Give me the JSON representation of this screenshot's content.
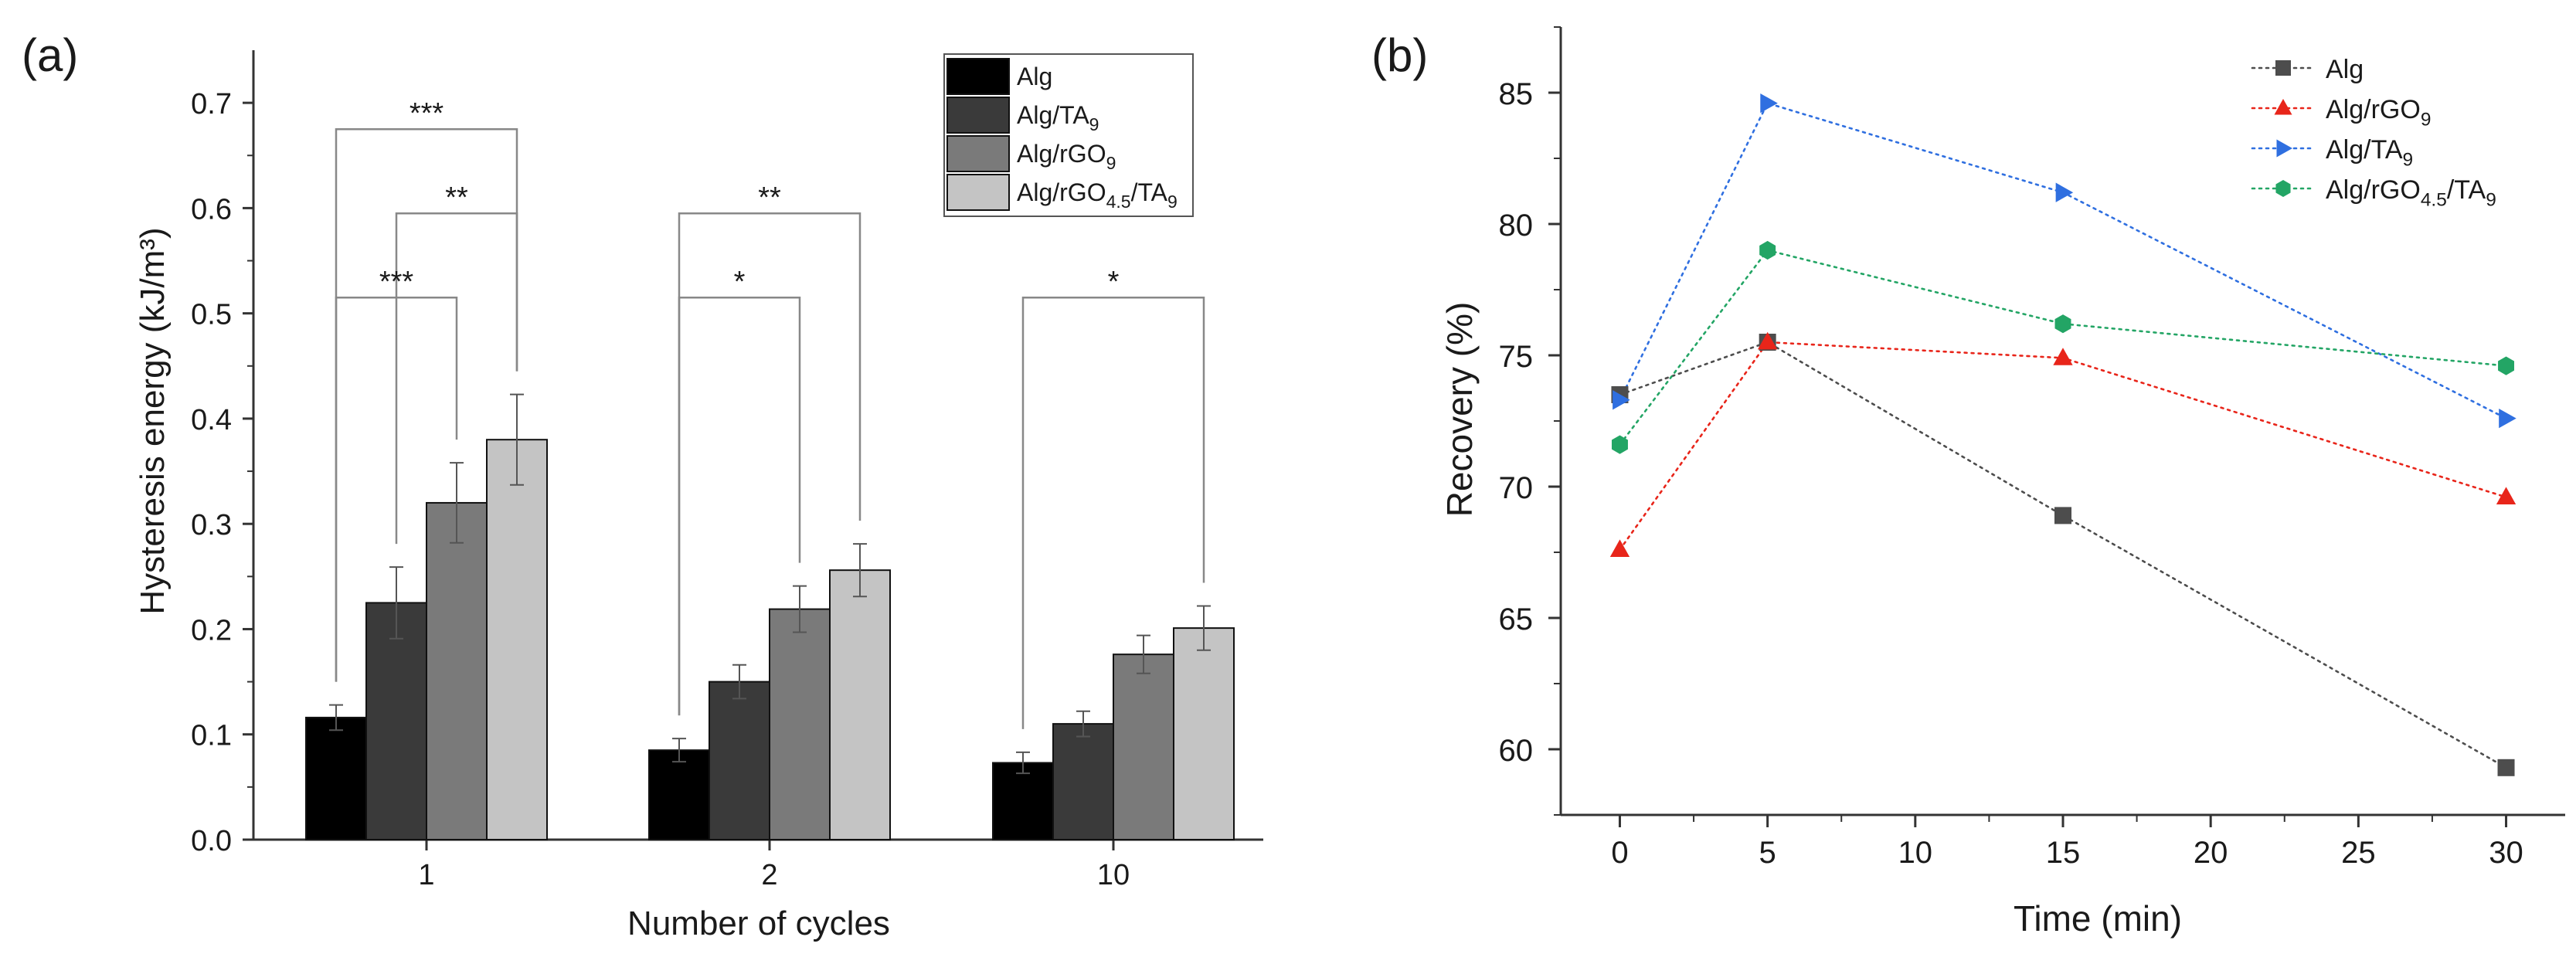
{
  "chart_data": [
    {
      "panel_label": "(a)",
      "type": "bar",
      "xlabel": "Number of cycles",
      "ylabel": "Hysteresis energy (kJ/m³)",
      "ylim": [
        0,
        0.75
      ],
      "yticks": [
        0.0,
        0.1,
        0.2,
        0.3,
        0.4,
        0.5,
        0.6,
        0.7
      ],
      "ytick_labels": [
        "0.0",
        "0.1",
        "0.2",
        "0.3",
        "0.4",
        "0.5",
        "0.6",
        "0.7"
      ],
      "categories": [
        "1",
        "2",
        "10"
      ],
      "legend_position": "top-right",
      "series": [
        {
          "name": "Alg",
          "sub": "",
          "tail": "",
          "color": "#000000",
          "values": [
            0.116,
            0.085,
            0.073
          ],
          "errors": [
            0.012,
            0.011,
            0.01
          ]
        },
        {
          "name": "Alg/TA",
          "sub": "9",
          "tail": "",
          "color": "#3a3a3a",
          "values": [
            0.225,
            0.15,
            0.11
          ],
          "errors": [
            0.034,
            0.016,
            0.012
          ]
        },
        {
          "name": "Alg/rGO",
          "sub": "9",
          "tail": "",
          "color": "#7a7a7a",
          "values": [
            0.32,
            0.219,
            0.176
          ],
          "errors": [
            0.038,
            0.022,
            0.018
          ]
        },
        {
          "name": "Alg/rGO",
          "sub": "4.5",
          "tail": "/TA",
          "tail_sub": "9",
          "color": "#c4c4c4",
          "values": [
            0.38,
            0.256,
            0.201
          ],
          "errors": [
            0.043,
            0.025,
            0.021
          ]
        }
      ],
      "significance": [
        {
          "group": 0,
          "from": 0,
          "to": 3,
          "y": 0.675,
          "label": "***"
        },
        {
          "group": 0,
          "from": 1,
          "to": 3,
          "y": 0.595,
          "label": "**"
        },
        {
          "group": 0,
          "from": 0,
          "to": 2,
          "y": 0.515,
          "label": "***"
        },
        {
          "group": 1,
          "from": 0,
          "to": 3,
          "y": 0.595,
          "label": "**"
        },
        {
          "group": 1,
          "from": 0,
          "to": 2,
          "y": 0.515,
          "label": "*"
        },
        {
          "group": 2,
          "from": 0,
          "to": 3,
          "y": 0.515,
          "label": "*"
        }
      ]
    },
    {
      "panel_label": "(b)",
      "type": "line",
      "xlabel": "Time (min)",
      "ylabel": "Recovery (%)",
      "xlim": [
        -2,
        32
      ],
      "ylim": [
        57.5,
        87.5
      ],
      "xticks": [
        0,
        5,
        10,
        15,
        20,
        25,
        30
      ],
      "yticks": [
        60,
        65,
        70,
        75,
        80,
        85
      ],
      "legend_position": "top-right",
      "series": [
        {
          "name": "Alg",
          "sub": "",
          "tail": "",
          "color": "#4d4d4d",
          "marker": "square",
          "x": [
            0,
            5,
            15,
            30
          ],
          "y": [
            73.5,
            75.5,
            68.9,
            59.3
          ]
        },
        {
          "name": "Alg/rGO",
          "sub": "9",
          "tail": "",
          "color": "#e8251a",
          "marker": "triangle-up",
          "x": [
            0,
            5,
            15,
            30
          ],
          "y": [
            67.6,
            75.5,
            74.9,
            69.6
          ]
        },
        {
          "name": "Alg/TA",
          "sub": "9",
          "tail": "",
          "color": "#2f6fe0",
          "marker": "triangle-right",
          "x": [
            0,
            5,
            15,
            30
          ],
          "y": [
            73.3,
            84.6,
            81.2,
            72.6
          ]
        },
        {
          "name": "Alg/rGO",
          "sub": "4.5",
          "tail": "/TA",
          "tail_sub": "9",
          "color": "#23a565",
          "marker": "hexagon",
          "x": [
            0,
            5,
            15,
            30
          ],
          "y": [
            71.6,
            79.0,
            76.2,
            74.6
          ]
        }
      ]
    }
  ]
}
